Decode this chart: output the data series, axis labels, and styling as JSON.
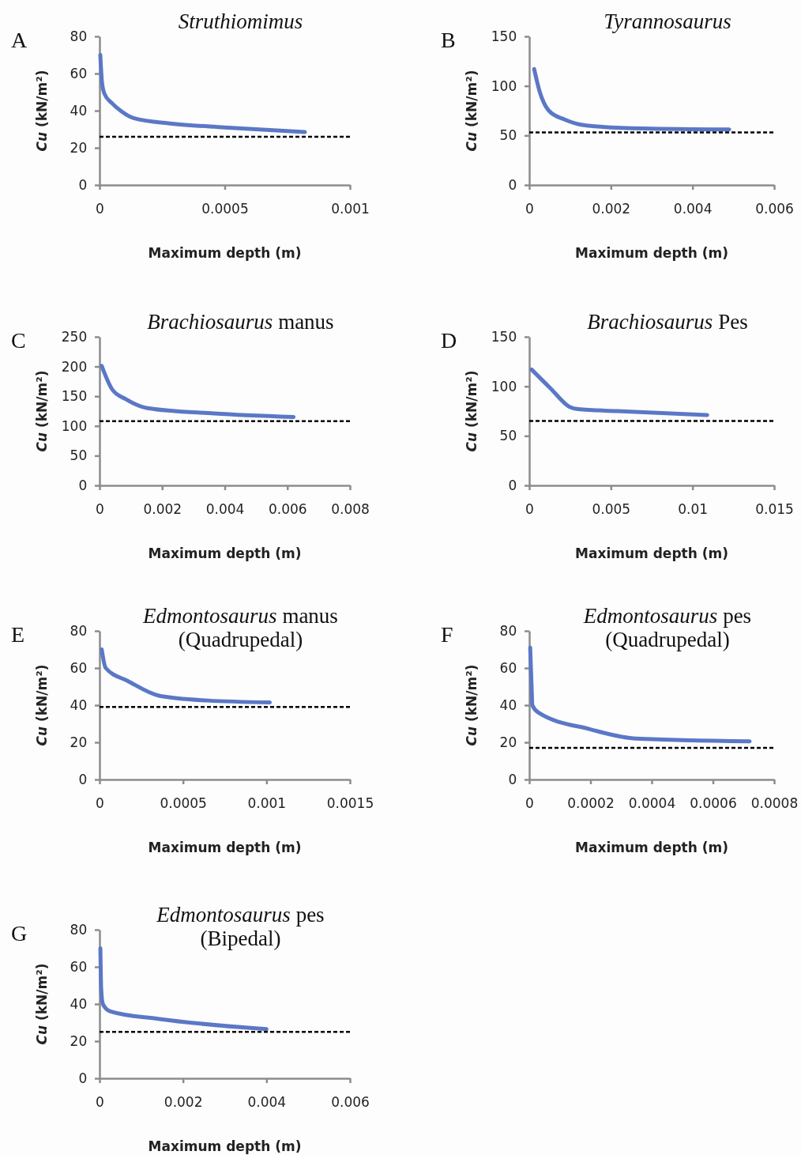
{
  "chart_data": [
    {
      "type": "line",
      "title": "Struthiomimus",
      "xlabel": "Maximum depth (m)",
      "ylabel": "Cu (kN/m²)",
      "annotations": [
        "A"
      ],
      "xlim": [
        0,
        0.001
      ],
      "xticks": [
        0,
        0.0005,
        0.001
      ],
      "ylim": [
        0,
        80
      ],
      "yticks": [
        0,
        20,
        40,
        60,
        80
      ],
      "grid": false,
      "marker": "none",
      "line_style": "solid",
      "series": [
        {
          "color": "#5b78c6",
          "x": [
            3e-06,
            1e-05,
            2e-05,
            5e-05,
            8.4e-05,
            0.000136,
            0.00029,
            0.0005,
            0.00082
          ],
          "values": [
            70,
            55,
            49,
            44,
            40,
            36,
            33,
            31,
            28.5
          ]
        }
      ],
      "ref_lines": [
        {
          "axis": "y",
          "value": 26,
          "color": "#000000",
          "line_style": "dashed"
        }
      ]
    },
    {
      "type": "line",
      "title": "Tyrannosaurus",
      "xlabel": "Maximum depth (m)",
      "ylabel": "Cu (kN/m²)",
      "annotations": [
        "B"
      ],
      "xlim": [
        0,
        0.006
      ],
      "xticks": [
        0,
        0.002,
        0.004,
        0.006
      ],
      "ylim": [
        0,
        150
      ],
      "yticks": [
        0,
        50,
        100,
        150
      ],
      "grid": false,
      "marker": "none",
      "line_style": "solid",
      "series": [
        {
          "color": "#5b78c6",
          "x": [
            0.00012,
            0.00025,
            0.00048,
            0.00087,
            0.0014,
            0.0028,
            0.0049
          ],
          "values": [
            117,
            95,
            75,
            66,
            60,
            57,
            56
          ]
        }
      ],
      "ref_lines": [
        {
          "axis": "y",
          "value": 53,
          "color": "#000000",
          "line_style": "dashed"
        }
      ]
    },
    {
      "type": "line",
      "title": "Brachiosaurus manus",
      "xlabel": "Maximum depth (m)",
      "ylabel": "Cu (kN/m²)",
      "annotations": [
        "C"
      ],
      "xlim": [
        0,
        0.008
      ],
      "xticks": [
        0,
        0.002,
        0.004,
        0.006,
        0.008
      ],
      "ylim": [
        0,
        250
      ],
      "yticks": [
        0,
        50,
        100,
        150,
        200,
        250
      ],
      "grid": false,
      "marker": "none",
      "line_style": "solid",
      "series": [
        {
          "color": "#5b78c6",
          "x": [
            7e-05,
            0.00041,
            0.00084,
            0.00153,
            0.00367,
            0.0062
          ],
          "values": [
            201,
            161,
            145,
            130,
            121,
            115
          ]
        }
      ],
      "ref_lines": [
        {
          "axis": "y",
          "value": 108,
          "color": "#000000",
          "line_style": "dashed"
        }
      ]
    },
    {
      "type": "line",
      "title": "Brachiosaurus Pes",
      "xlabel": "Maximum depth (m)",
      "ylabel": "Cu (kN/m²)",
      "annotations": [
        "D"
      ],
      "xlim": [
        0,
        0.015
      ],
      "xticks": [
        0,
        0.005,
        0.01,
        0.015
      ],
      "ylim": [
        0,
        150
      ],
      "yticks": [
        0,
        50,
        100,
        150
      ],
      "grid": false,
      "marker": "none",
      "line_style": "solid",
      "series": [
        {
          "color": "#5b78c6",
          "x": [
            0.00014,
            0.0013,
            0.0025,
            0.003,
            0.0054,
            0.0109
          ],
          "values": [
            117,
            98,
            79,
            77,
            75,
            71
          ]
        }
      ],
      "ref_lines": [
        {
          "axis": "y",
          "value": 65,
          "color": "#000000",
          "line_style": "dashed"
        }
      ]
    },
    {
      "type": "line",
      "title": "Edmontosaurus manus\n(Quadrupedal)",
      "xlabel": "Maximum depth (m)",
      "ylabel": "Cu (kN/m²)",
      "annotations": [
        "E"
      ],
      "xlim": [
        0,
        0.0015
      ],
      "xticks": [
        0,
        0.0005,
        0.001,
        0.0015
      ],
      "ylim": [
        0,
        80
      ],
      "yticks": [
        0,
        20,
        40,
        60,
        80
      ],
      "grid": false,
      "marker": "none",
      "line_style": "solid",
      "series": [
        {
          "color": "#5b78c6",
          "x": [
            1.3e-05,
            3.7e-05,
            0.00017,
            0.00036,
            0.00065,
            0.00102
          ],
          "values": [
            70,
            60,
            53,
            45,
            42.5,
            41.5
          ]
        }
      ],
      "ref_lines": [
        {
          "axis": "y",
          "value": 39,
          "color": "#000000",
          "line_style": "dashed"
        }
      ]
    },
    {
      "type": "line",
      "title": "Edmontosaurus pes\n(Quadrupedal)",
      "xlabel": "Maximum depth (m)",
      "ylabel": "Cu (kN/m²)",
      "annotations": [
        "F"
      ],
      "xlim": [
        0,
        0.0008
      ],
      "xticks": [
        0,
        0.0002,
        0.0004,
        0.0006,
        0.0008
      ],
      "ylim": [
        0,
        80
      ],
      "yticks": [
        0,
        20,
        40,
        60,
        80
      ],
      "grid": false,
      "marker": "none",
      "line_style": "solid",
      "series": [
        {
          "color": "#5b78c6",
          "x": [
            3e-06,
            8e-06,
            1e-05,
            3e-05,
            0.0002,
            0.00035,
            0.00072
          ],
          "values": [
            71,
            48,
            40,
            36,
            27,
            22,
            20.5
          ]
        }
      ],
      "ref_lines": [
        {
          "axis": "y",
          "value": 17,
          "color": "#000000",
          "line_style": "dashed"
        }
      ]
    },
    {
      "type": "line",
      "title": "Edmontosaurus pes\n(Bipedal)",
      "xlabel": "Maximum depth (m)",
      "ylabel": "Cu (kN/m²)",
      "annotations": [
        "G"
      ],
      "xlim": [
        0,
        0.006
      ],
      "xticks": [
        0,
        0.002,
        0.004,
        0.006
      ],
      "ylim": [
        0,
        80
      ],
      "yticks": [
        0,
        20,
        40,
        60,
        80
      ],
      "grid": false,
      "marker": "none",
      "line_style": "solid",
      "series": [
        {
          "color": "#5b78c6",
          "x": [
            2e-05,
            4e-05,
            8e-05,
            0.00026,
            0.0014,
            0.004
          ],
          "values": [
            70,
            48,
            40,
            36,
            32,
            26.5
          ]
        }
      ],
      "ref_lines": [
        {
          "axis": "y",
          "value": 25,
          "color": "#000000",
          "line_style": "dashed"
        }
      ]
    }
  ]
}
